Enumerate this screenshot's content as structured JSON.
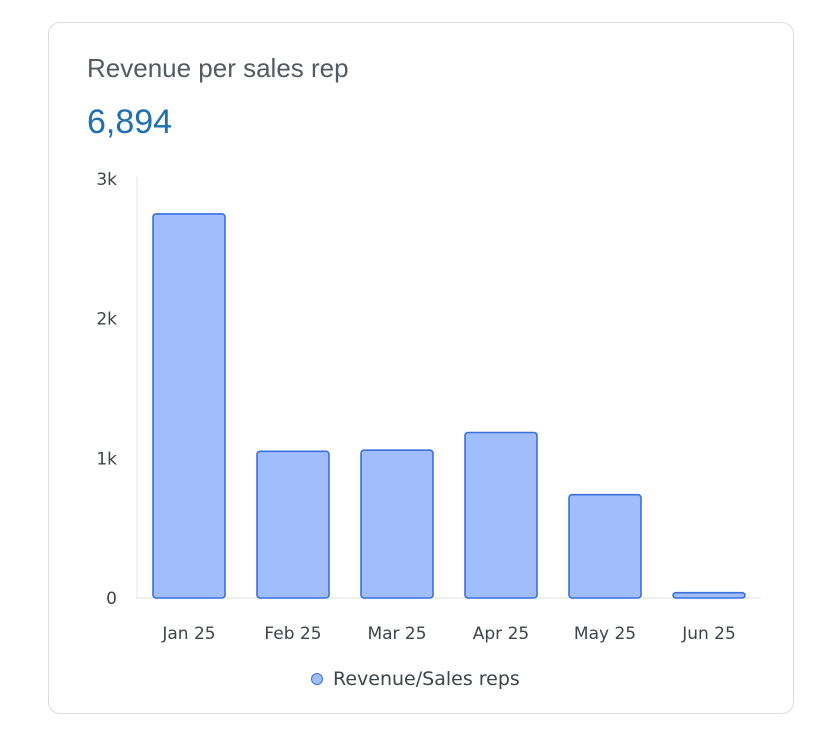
{
  "card": {
    "title": "Revenue per sales rep",
    "value": "6,894"
  },
  "chart_data": {
    "type": "bar",
    "title": "Revenue per sales rep",
    "categories": [
      "Jan 25",
      "Feb 25",
      "Mar 25",
      "Apr 25",
      "May 25",
      "Jun 25"
    ],
    "series": [
      {
        "name": "Revenue/Sales reps",
        "values": [
          2750,
          1050,
          1058,
          1185,
          740,
          38
        ]
      }
    ],
    "ylim": [
      0,
      3000
    ],
    "yticks": [
      0,
      1000,
      2000,
      3000
    ],
    "ytick_labels": [
      "0",
      "1k",
      "2k",
      "3k"
    ],
    "grid": false,
    "legend": "bottom-center",
    "colors": {
      "bar_fill": "#a0bdfc",
      "bar_stroke": "#3b6fe0"
    }
  }
}
